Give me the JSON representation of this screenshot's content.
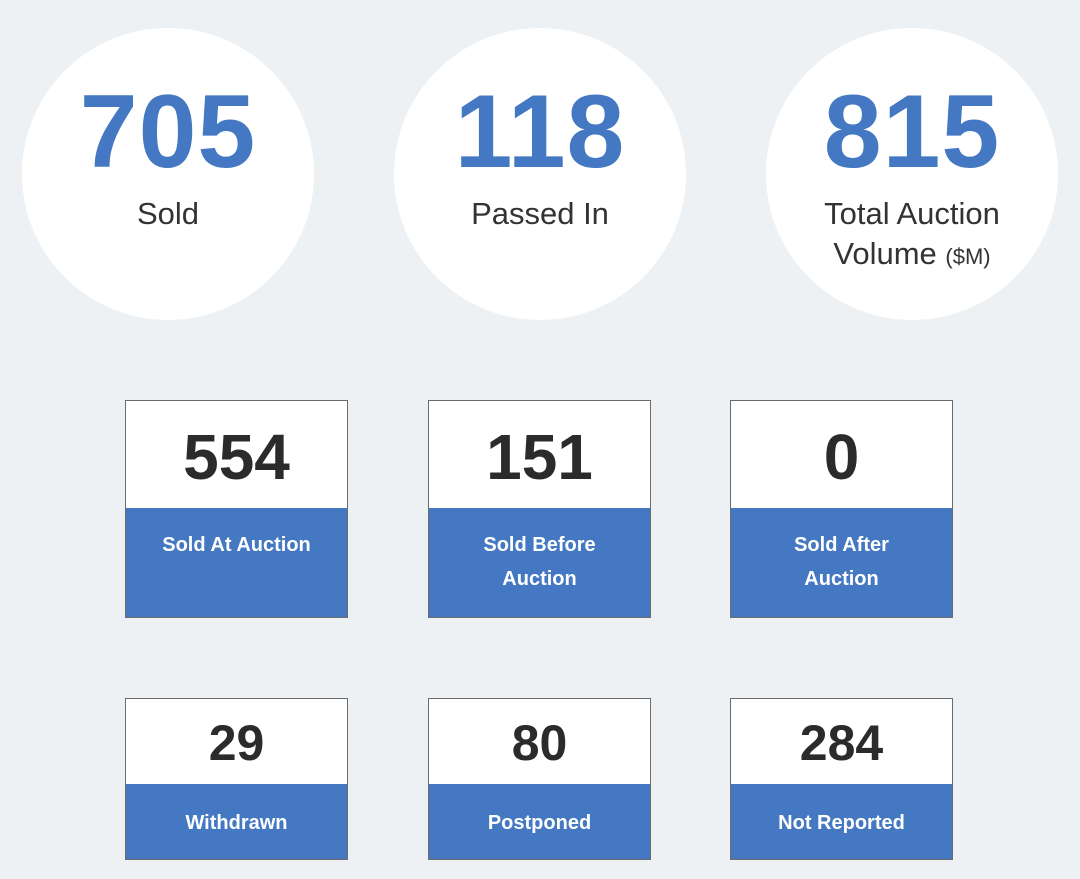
{
  "summary": {
    "sold": {
      "value": "705",
      "label": "Sold"
    },
    "passed_in": {
      "value": "118",
      "label": "Passed In"
    },
    "volume": {
      "value": "815",
      "label_line1": "Total Auction",
      "label_line2": "Volume",
      "unit": "($M)"
    }
  },
  "cards": [
    {
      "value": "554",
      "label": "Sold At Auction"
    },
    {
      "value": "151",
      "label": "Sold Before Auction"
    },
    {
      "value": "0",
      "label": "Sold After Auction"
    },
    {
      "value": "29",
      "label": "Withdrawn"
    },
    {
      "value": "80",
      "label": "Postponed"
    },
    {
      "value": "284",
      "label": "Not Reported"
    }
  ],
  "colors": {
    "accent": "#4478c2",
    "background": "#edf1f4",
    "card_value_text": "#2b2b2b",
    "label_text": "#333333"
  }
}
